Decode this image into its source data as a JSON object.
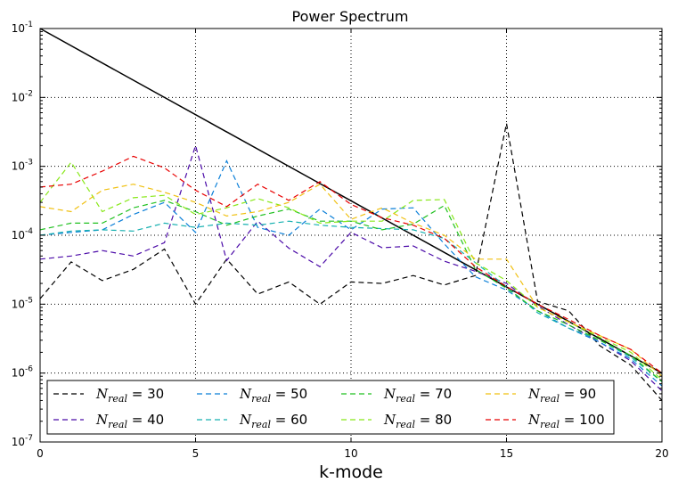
{
  "chart_data": {
    "type": "line",
    "title": "Power Spectrum",
    "xlabel": "k-mode",
    "ylabel": "",
    "xlim": [
      0,
      20
    ],
    "ylim": [
      1e-07,
      0.1
    ],
    "yscale": "log",
    "grid": true,
    "legend_position": "lower-center",
    "x_ticks": [
      "0",
      "5",
      "10",
      "15",
      "20"
    ],
    "y_ticks": [
      {
        "base": "10",
        "exp": "-7"
      },
      {
        "base": "10",
        "exp": "-6"
      },
      {
        "base": "10",
        "exp": "-5"
      },
      {
        "base": "10",
        "exp": "-4"
      },
      {
        "base": "10",
        "exp": "-3"
      },
      {
        "base": "10",
        "exp": "-2"
      },
      {
        "base": "10",
        "exp": "-1"
      }
    ],
    "reference": {
      "name": "",
      "color": "#000000",
      "x": [
        0,
        20
      ],
      "y": [
        0.1,
        1e-06
      ]
    },
    "x": [
      0,
      1,
      2,
      3,
      4,
      5,
      6,
      7,
      8,
      9,
      10,
      11,
      12,
      13,
      14,
      15,
      16,
      17,
      18,
      19,
      20
    ],
    "series": [
      {
        "name": "N_real",
        "value": "= 30",
        "color": "#000000",
        "values": [
          1.2e-05,
          4.1e-05,
          2.2e-05,
          3.2e-05,
          6.3e-05,
          1e-05,
          4.5e-05,
          1.4e-05,
          2.1e-05,
          1e-05,
          2.1e-05,
          2e-05,
          2.6e-05,
          1.9e-05,
          2.6e-05,
          0.0042,
          1.1e-05,
          8e-06,
          2.5e-06,
          1.3e-06,
          4e-07
        ]
      },
      {
        "name": "N_real",
        "value": "= 40",
        "color": "#4b0aa8",
        "values": [
          4.5e-05,
          5e-05,
          6e-05,
          5e-05,
          7.8e-05,
          0.002,
          4.3e-05,
          0.00016,
          6.5e-05,
          3.5e-05,
          0.00011,
          6.6e-05,
          7e-05,
          4.2e-05,
          3e-05,
          2e-05,
          9.5e-06,
          5e-06,
          2.8e-06,
          1.5e-06,
          5.5e-07
        ]
      },
      {
        "name": "N_real",
        "value": "= 50",
        "color": "#0a7fd8",
        "values": [
          0.0001,
          0.00011,
          0.00012,
          0.0002,
          0.0003,
          0.00011,
          0.0012,
          0.00013,
          0.0001,
          0.00024,
          0.00012,
          0.00024,
          0.00025,
          7.5e-05,
          2.5e-05,
          1.6e-05,
          8e-06,
          4.5e-06,
          2.8e-06,
          1.6e-06,
          6.5e-07
        ]
      },
      {
        "name": "N_real",
        "value": "= 60",
        "color": "#16b0b0",
        "values": [
          0.0001,
          0.000115,
          0.00012,
          0.000115,
          0.00015,
          0.00013,
          0.00015,
          0.00014,
          0.00016,
          0.00014,
          0.00013,
          0.000125,
          0.00012,
          9e-05,
          4e-05,
          1.8e-05,
          7.5e-06,
          4.5e-06,
          3e-06,
          1.7e-06,
          7.5e-07
        ]
      },
      {
        "name": "N_real",
        "value": "= 70",
        "color": "#20c020",
        "values": [
          0.00012,
          0.00015,
          0.00015,
          0.00025,
          0.00032,
          0.00022,
          0.00014,
          0.00019,
          0.00024,
          0.00016,
          0.00016,
          0.00012,
          0.000145,
          0.00027,
          3.2e-05,
          1.7e-05,
          8e-06,
          5e-06,
          3e-06,
          1.8e-06,
          7.5e-07
        ]
      },
      {
        "name": "N_real",
        "value": "= 80",
        "color": "#88e818",
        "values": [
          0.0003,
          0.00115,
          0.00022,
          0.00035,
          0.00038,
          0.0002,
          0.00025,
          0.00034,
          0.00025,
          0.00015,
          0.00016,
          0.00016,
          0.00032,
          0.00033,
          4e-05,
          2.2e-05,
          9e-06,
          5.5e-06,
          3.3e-06,
          2e-06,
          8e-07
        ]
      },
      {
        "name": "N_real",
        "value": "= 90",
        "color": "#f0c010",
        "values": [
          0.00026,
          0.00022,
          0.00045,
          0.00055,
          0.00042,
          0.0003,
          0.00019,
          0.00022,
          0.0003,
          0.00055,
          0.00017,
          0.00025,
          0.00015,
          0.0001,
          4.5e-05,
          4.5e-05,
          9e-06,
          5.5e-06,
          3.5e-06,
          2.2e-06,
          9e-07
        ]
      },
      {
        "name": "N_real",
        "value": "= 100",
        "color": "#e80000",
        "values": [
          0.0005,
          0.00055,
          0.00085,
          0.0014,
          0.00095,
          0.00045,
          0.00026,
          0.00055,
          0.00032,
          0.0006,
          0.00028,
          0.00018,
          0.00014,
          9e-05,
          3.5e-05,
          1.8e-05,
          1e-05,
          6e-06,
          3.5e-06,
          2.2e-06,
          1e-06
        ]
      }
    ]
  }
}
